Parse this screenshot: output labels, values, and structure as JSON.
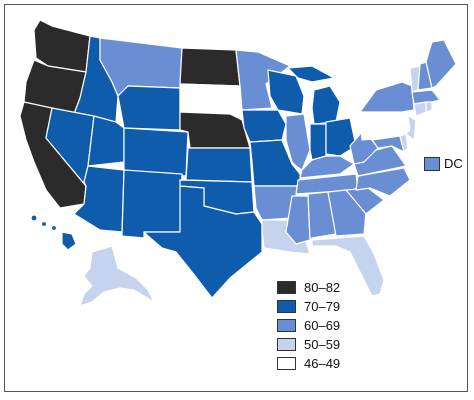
{
  "legend": {
    "items": [
      {
        "label": "80–82",
        "color": "#2b2b2b"
      },
      {
        "label": "70–79",
        "color": "#0e5cab"
      },
      {
        "label": "60–69",
        "color": "#6a8ed3"
      },
      {
        "label": "50–59",
        "color": "#c5d3ee"
      },
      {
        "label": "46–49",
        "color": "#ffffff"
      }
    ]
  },
  "dc": {
    "label": "DC",
    "color": "#6a8ed3"
  },
  "map": {
    "states": [
      {
        "id": "WA",
        "bin": 0
      },
      {
        "id": "OR",
        "bin": 0
      },
      {
        "id": "CA",
        "bin": 0
      },
      {
        "id": "ND",
        "bin": 0
      },
      {
        "id": "NE",
        "bin": 0
      },
      {
        "id": "ID",
        "bin": 1
      },
      {
        "id": "NV",
        "bin": 1
      },
      {
        "id": "UT",
        "bin": 1
      },
      {
        "id": "AZ",
        "bin": 1
      },
      {
        "id": "WY",
        "bin": 1
      },
      {
        "id": "CO",
        "bin": 1
      },
      {
        "id": "NM",
        "bin": 1
      },
      {
        "id": "KS",
        "bin": 1
      },
      {
        "id": "OK",
        "bin": 1
      },
      {
        "id": "TX",
        "bin": 1
      },
      {
        "id": "IA",
        "bin": 1
      },
      {
        "id": "MO",
        "bin": 1
      },
      {
        "id": "WI",
        "bin": 1
      },
      {
        "id": "MI",
        "bin": 1
      },
      {
        "id": "IN",
        "bin": 1
      },
      {
        "id": "OH",
        "bin": 1
      },
      {
        "id": "HI",
        "bin": 1
      },
      {
        "id": "MT",
        "bin": 2
      },
      {
        "id": "MN",
        "bin": 2
      },
      {
        "id": "IL",
        "bin": 2
      },
      {
        "id": "AR",
        "bin": 2
      },
      {
        "id": "MS",
        "bin": 2
      },
      {
        "id": "AL",
        "bin": 2
      },
      {
        "id": "GA",
        "bin": 2
      },
      {
        "id": "TN",
        "bin": 2
      },
      {
        "id": "KY",
        "bin": 2
      },
      {
        "id": "SC",
        "bin": 2
      },
      {
        "id": "NC",
        "bin": 2
      },
      {
        "id": "VA",
        "bin": 2
      },
      {
        "id": "WV",
        "bin": 2
      },
      {
        "id": "MD",
        "bin": 2
      },
      {
        "id": "NY",
        "bin": 2
      },
      {
        "id": "ME",
        "bin": 2
      },
      {
        "id": "NH",
        "bin": 2
      },
      {
        "id": "MA",
        "bin": 2
      },
      {
        "id": "LA",
        "bin": 3
      },
      {
        "id": "FL",
        "bin": 3
      },
      {
        "id": "AK",
        "bin": 3
      },
      {
        "id": "VT",
        "bin": 3
      },
      {
        "id": "CT",
        "bin": 3
      },
      {
        "id": "RI",
        "bin": 3
      },
      {
        "id": "NJ",
        "bin": 3
      },
      {
        "id": "DE",
        "bin": 3
      },
      {
        "id": "SD",
        "bin": 4
      },
      {
        "id": "PA",
        "bin": 4
      }
    ]
  }
}
